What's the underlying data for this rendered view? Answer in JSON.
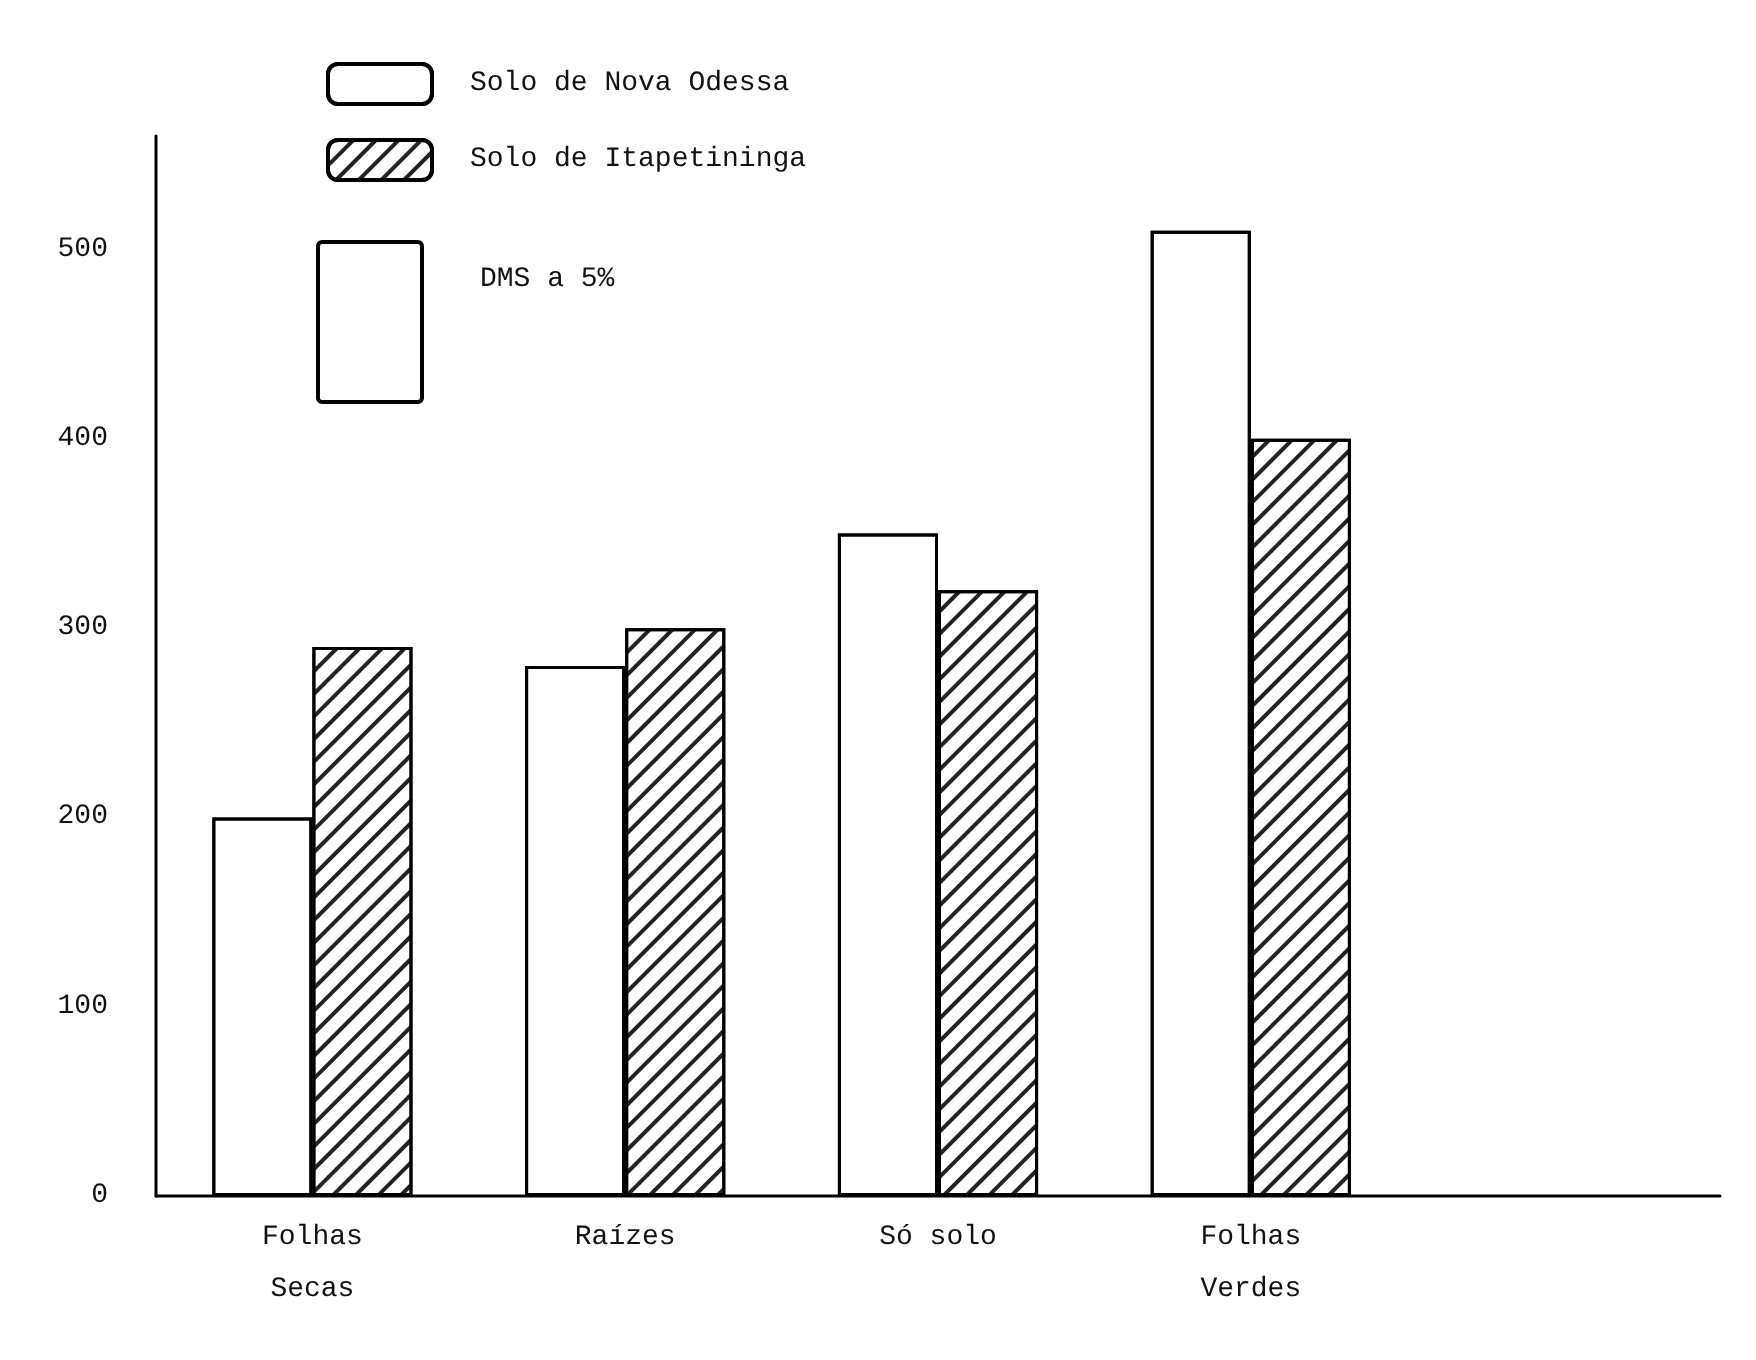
{
  "chart_data": {
    "type": "bar",
    "categories": [
      "Folhas\nSecas",
      "Raízes",
      "Só solo",
      "Folhas\nVerdes",
      null
    ],
    "series": [
      {
        "name": "Solo de Nova Odessa",
        "color": "#ffffff",
        "values": [
          200,
          280,
          350,
          510,
          null
        ]
      },
      {
        "name": "Solo de Itapetininga",
        "color": "#ffffff",
        "values": [
          290,
          300,
          320,
          400,
          null
        ]
      }
    ],
    "ylim": [
      0,
      560
    ],
    "yticks": [
      0,
      100,
      200,
      300,
      400,
      500
    ],
    "grid": false,
    "legend": "top left",
    "annotations": [
      "DMS a 5%"
    ]
  }
}
